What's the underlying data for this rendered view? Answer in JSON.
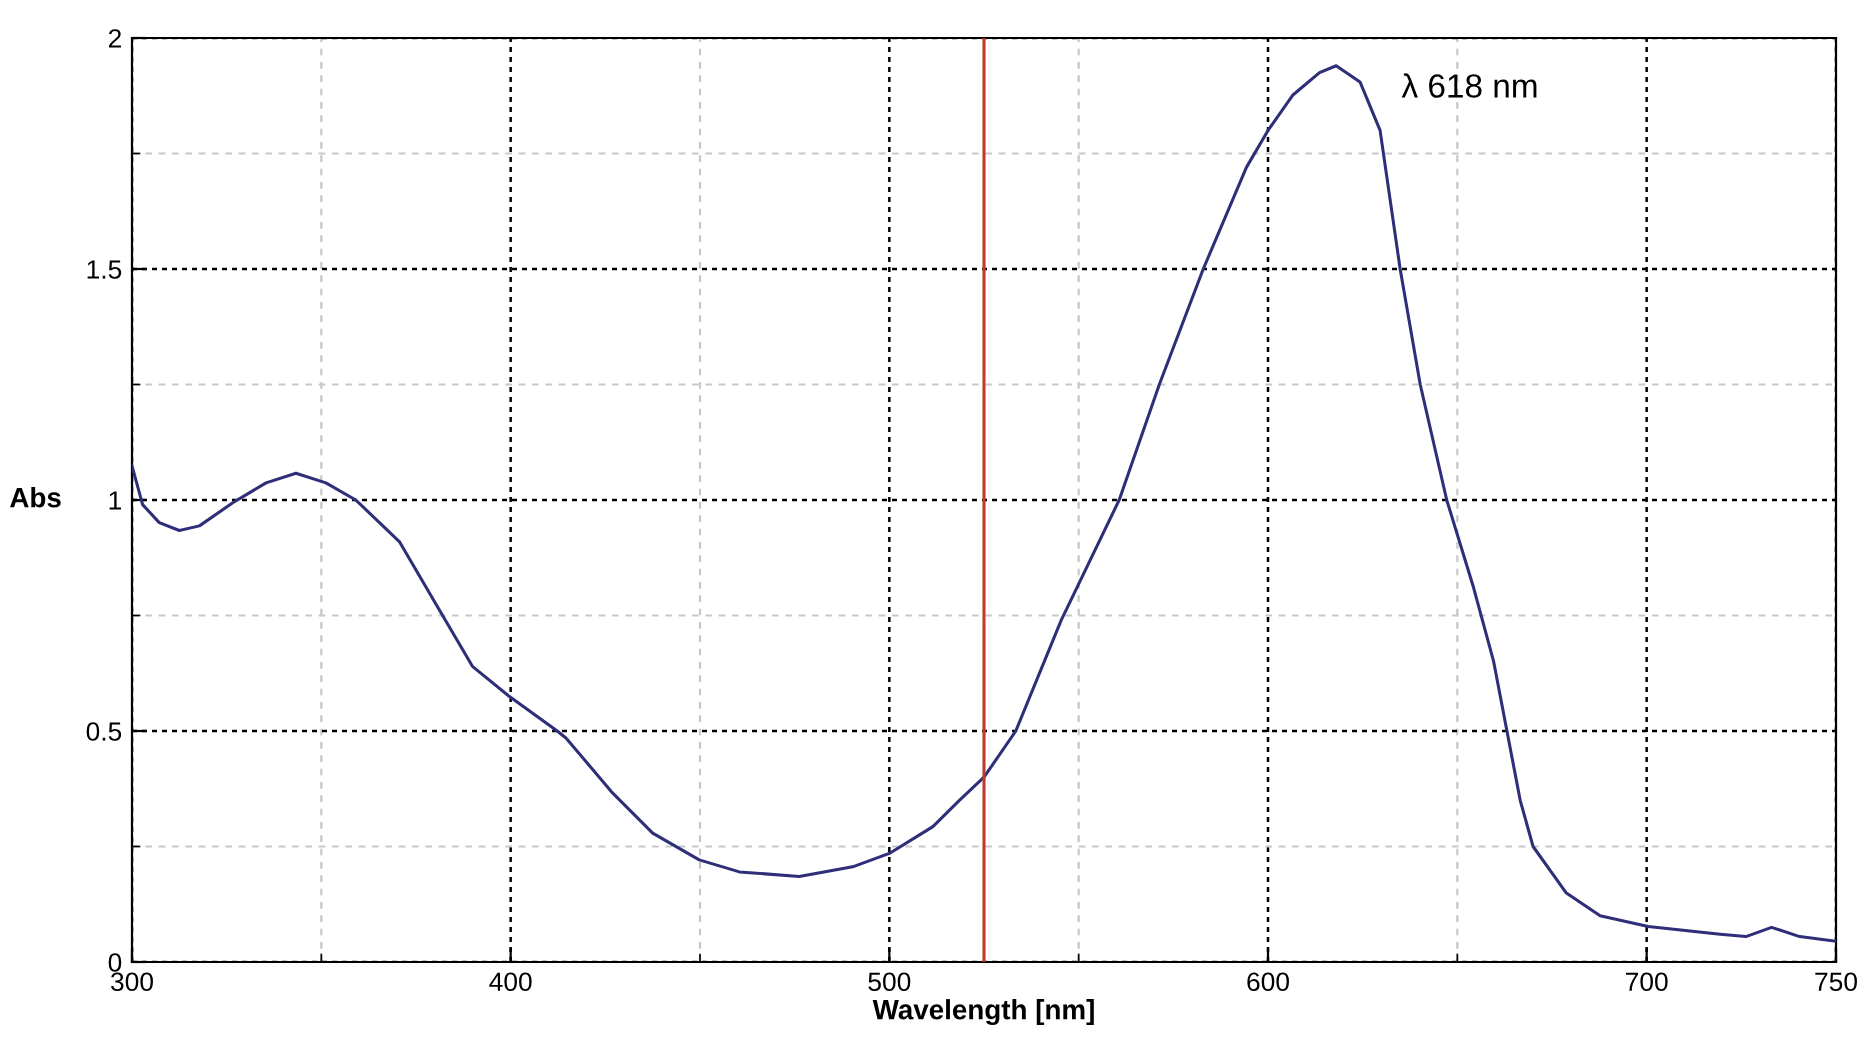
{
  "chart_data": {
    "type": "line",
    "xlabel": "Wavelength [nm]",
    "ylabel": "Abs",
    "xlim": [
      300,
      750
    ],
    "xticks": [
      300,
      400,
      500,
      600,
      700,
      750
    ],
    "ylim": [
      0,
      2
    ],
    "yticks": [
      0,
      0.5,
      1,
      1.5,
      2
    ],
    "grid": true,
    "marker": "none",
    "line_style": "solid",
    "series": [
      {
        "color": "#2e2f78",
        "x": [
          300,
          302.8,
          307.2,
          312.5,
          317.8,
          326.6,
          335.4,
          343.3,
          351.2,
          359.1,
          370.6,
          381.1,
          389.9,
          399.6,
          412.3,
          414.6,
          426.9,
          437.5,
          449.8,
          460.4,
          476.2,
          490.3,
          500,
          511.5,
          518.5,
          525,
          533.4,
          545.4,
          560.7,
          571.3,
          582.9,
          594.3,
          600,
          606.5,
          613.6,
          618,
          624.3,
          629.6,
          634.9,
          640.2,
          647.2,
          654.3,
          659.6,
          663.1,
          666.6,
          670,
          678.7,
          687.7,
          700.4,
          719.4,
          726.2,
          733,
          740.4,
          750
        ],
        "values": [
          1.074,
          0.99,
          0.951,
          0.934,
          0.944,
          0.994,
          1.037,
          1.058,
          1.037,
          1.0,
          0.91,
          0.763,
          0.64,
          0.575,
          0.5,
          0.485,
          0.366,
          0.279,
          0.221,
          0.195,
          0.185,
          0.206,
          0.235,
          0.293,
          0.35,
          0.4,
          0.5,
          0.74,
          1.0,
          1.25,
          1.5,
          1.72,
          1.8,
          1.876,
          1.925,
          1.94,
          1.905,
          1.8,
          1.5,
          1.25,
          1.0,
          0.81,
          0.65,
          0.5,
          0.35,
          0.25,
          0.15,
          0.1,
          0.077,
          0.06,
          0.055,
          0.075,
          0.055,
          0.045
        ]
      }
    ],
    "ref_lines": [
      {
        "axis": "x",
        "value": 525,
        "color": "#c0392b"
      }
    ],
    "annotations": [
      "λ 618 nm"
    ]
  }
}
